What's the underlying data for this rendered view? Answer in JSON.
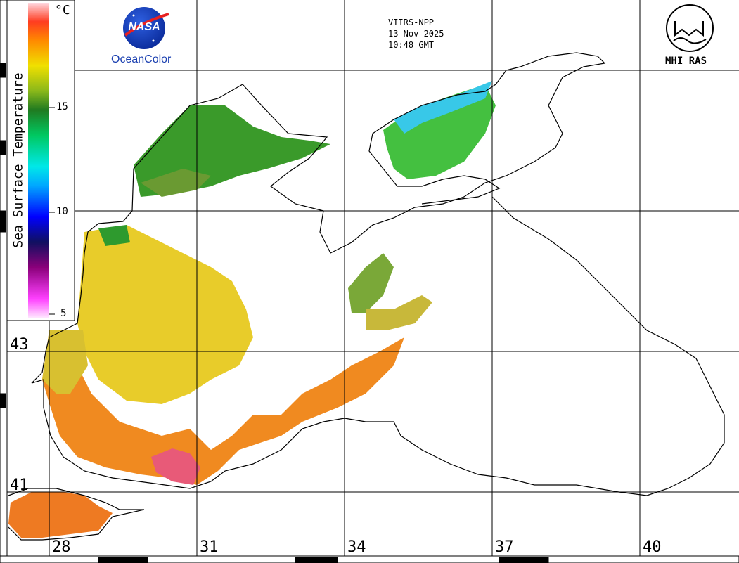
{
  "header": {
    "satellite": "VIIRS-NPP",
    "date": "13 Nov 2025",
    "time": "10:48 GMT"
  },
  "logos": {
    "nasa_text": "NASA",
    "oceancolor_text": "OceanColor",
    "institute_text": "MHI RAS"
  },
  "colorbar": {
    "title": "Sea Surface Temperature",
    "unit": "°C",
    "ticks": [
      "15",
      "10",
      "5"
    ],
    "range": [
      5,
      20
    ]
  },
  "map": {
    "latitude_labels": [
      "43",
      "41"
    ],
    "longitude_labels": [
      "28",
      "31",
      "34",
      "37",
      "40"
    ]
  },
  "colors": {
    "warm_sst": "#f07a20",
    "hot_sst": "#e85a78",
    "mid_sst": "#e8d230",
    "cool_sst": "#2e9a2e",
    "cold_sst": "#38c8e8",
    "coastline": "#000000"
  }
}
